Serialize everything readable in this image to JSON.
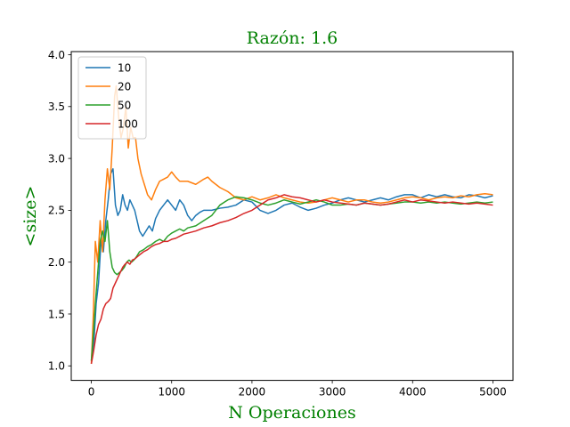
{
  "chart_data": {
    "type": "line",
    "title": "Razón: 1.6",
    "xlabel": "N Operaciones",
    "ylabel": "<size>",
    "label_color": "#008000",
    "xlim": [
      -250,
      5250
    ],
    "ylim": [
      0.86,
      4.03
    ],
    "xticks": [
      0,
      1000,
      2000,
      3000,
      4000,
      5000
    ],
    "xtick_labels": [
      "0",
      "1000",
      "2000",
      "3000",
      "4000",
      "5000"
    ],
    "yticks": [
      1.0,
      1.5,
      2.0,
      2.5,
      3.0,
      3.5,
      4.0
    ],
    "ytick_labels": [
      "1.0",
      "1.5",
      "2.0",
      "2.5",
      "3.0",
      "3.5",
      "4.0"
    ],
    "grid": false,
    "legend_position": "top-left",
    "series": [
      {
        "name": "10",
        "color": "#1f77b4",
        "points": [
          [
            0,
            1.05
          ],
          [
            30,
            1.2
          ],
          [
            60,
            1.6
          ],
          [
            90,
            1.8
          ],
          [
            120,
            2.2
          ],
          [
            150,
            2.1
          ],
          [
            180,
            2.4
          ],
          [
            210,
            2.6
          ],
          [
            240,
            2.85
          ],
          [
            270,
            2.9
          ],
          [
            300,
            2.55
          ],
          [
            330,
            2.45
          ],
          [
            360,
            2.5
          ],
          [
            390,
            2.65
          ],
          [
            420,
            2.55
          ],
          [
            450,
            2.5
          ],
          [
            480,
            2.6
          ],
          [
            510,
            2.55
          ],
          [
            540,
            2.5
          ],
          [
            570,
            2.4
          ],
          [
            600,
            2.3
          ],
          [
            640,
            2.25
          ],
          [
            680,
            2.3
          ],
          [
            720,
            2.35
          ],
          [
            760,
            2.3
          ],
          [
            800,
            2.42
          ],
          [
            850,
            2.5
          ],
          [
            900,
            2.55
          ],
          [
            950,
            2.6
          ],
          [
            1000,
            2.55
          ],
          [
            1050,
            2.5
          ],
          [
            1100,
            2.6
          ],
          [
            1150,
            2.55
          ],
          [
            1200,
            2.45
          ],
          [
            1250,
            2.4
          ],
          [
            1300,
            2.45
          ],
          [
            1350,
            2.48
          ],
          [
            1400,
            2.5
          ],
          [
            1500,
            2.5
          ],
          [
            1600,
            2.52
          ],
          [
            1700,
            2.53
          ],
          [
            1800,
            2.55
          ],
          [
            1900,
            2.6
          ],
          [
            2000,
            2.58
          ],
          [
            2100,
            2.5
          ],
          [
            2200,
            2.47
          ],
          [
            2300,
            2.5
          ],
          [
            2400,
            2.55
          ],
          [
            2500,
            2.57
          ],
          [
            2600,
            2.53
          ],
          [
            2700,
            2.5
          ],
          [
            2800,
            2.52
          ],
          [
            2900,
            2.55
          ],
          [
            3000,
            2.57
          ],
          [
            3100,
            2.6
          ],
          [
            3200,
            2.62
          ],
          [
            3300,
            2.6
          ],
          [
            3400,
            2.58
          ],
          [
            3500,
            2.6
          ],
          [
            3600,
            2.62
          ],
          [
            3700,
            2.6
          ],
          [
            3800,
            2.63
          ],
          [
            3900,
            2.65
          ],
          [
            4000,
            2.65
          ],
          [
            4100,
            2.62
          ],
          [
            4200,
            2.65
          ],
          [
            4300,
            2.63
          ],
          [
            4400,
            2.65
          ],
          [
            4500,
            2.63
          ],
          [
            4600,
            2.62
          ],
          [
            4700,
            2.65
          ],
          [
            4800,
            2.64
          ],
          [
            4900,
            2.62
          ],
          [
            5000,
            2.64
          ]
        ]
      },
      {
        "name": "20",
        "color": "#ff7f0e",
        "points": [
          [
            0,
            1.02
          ],
          [
            25,
            1.5
          ],
          [
            50,
            2.2
          ],
          [
            80,
            2.0
          ],
          [
            110,
            2.4
          ],
          [
            140,
            2.1
          ],
          [
            170,
            2.6
          ],
          [
            200,
            2.9
          ],
          [
            230,
            2.7
          ],
          [
            260,
            3.1
          ],
          [
            290,
            3.6
          ],
          [
            310,
            3.7
          ],
          [
            340,
            3.4
          ],
          [
            370,
            3.2
          ],
          [
            400,
            3.3
          ],
          [
            430,
            3.5
          ],
          [
            460,
            3.1
          ],
          [
            490,
            3.3
          ],
          [
            520,
            3.2
          ],
          [
            550,
            3.2
          ],
          [
            580,
            3.0
          ],
          [
            620,
            2.85
          ],
          [
            660,
            2.75
          ],
          [
            700,
            2.65
          ],
          [
            750,
            2.6
          ],
          [
            800,
            2.7
          ],
          [
            850,
            2.78
          ],
          [
            900,
            2.8
          ],
          [
            950,
            2.82
          ],
          [
            1000,
            2.87
          ],
          [
            1050,
            2.82
          ],
          [
            1100,
            2.78
          ],
          [
            1200,
            2.78
          ],
          [
            1300,
            2.75
          ],
          [
            1400,
            2.8
          ],
          [
            1450,
            2.82
          ],
          [
            1500,
            2.78
          ],
          [
            1600,
            2.72
          ],
          [
            1700,
            2.68
          ],
          [
            1800,
            2.62
          ],
          [
            1900,
            2.6
          ],
          [
            2000,
            2.63
          ],
          [
            2100,
            2.6
          ],
          [
            2200,
            2.62
          ],
          [
            2300,
            2.65
          ],
          [
            2400,
            2.62
          ],
          [
            2500,
            2.6
          ],
          [
            2600,
            2.58
          ],
          [
            2700,
            2.57
          ],
          [
            2800,
            2.58
          ],
          [
            2900,
            2.6
          ],
          [
            3000,
            2.62
          ],
          [
            3100,
            2.6
          ],
          [
            3200,
            2.58
          ],
          [
            3300,
            2.6
          ],
          [
            3400,
            2.6
          ],
          [
            3500,
            2.58
          ],
          [
            3600,
            2.57
          ],
          [
            3700,
            2.58
          ],
          [
            3800,
            2.6
          ],
          [
            3900,
            2.62
          ],
          [
            4000,
            2.63
          ],
          [
            4100,
            2.62
          ],
          [
            4200,
            2.6
          ],
          [
            4300,
            2.62
          ],
          [
            4400,
            2.63
          ],
          [
            4500,
            2.62
          ],
          [
            4600,
            2.64
          ],
          [
            4700,
            2.63
          ],
          [
            4800,
            2.65
          ],
          [
            4900,
            2.66
          ],
          [
            5000,
            2.65
          ]
        ]
      },
      {
        "name": "50",
        "color": "#2ca02c",
        "points": [
          [
            0,
            1.05
          ],
          [
            25,
            1.3
          ],
          [
            50,
            1.6
          ],
          [
            80,
            1.9
          ],
          [
            110,
            2.2
          ],
          [
            140,
            2.3
          ],
          [
            170,
            2.2
          ],
          [
            200,
            2.4
          ],
          [
            230,
            2.1
          ],
          [
            260,
            1.95
          ],
          [
            290,
            1.9
          ],
          [
            320,
            1.88
          ],
          [
            350,
            1.9
          ],
          [
            380,
            1.92
          ],
          [
            410,
            1.95
          ],
          [
            440,
            2.0
          ],
          [
            470,
            2.02
          ],
          [
            500,
            2.0
          ],
          [
            530,
            2.02
          ],
          [
            560,
            2.05
          ],
          [
            600,
            2.1
          ],
          [
            650,
            2.12
          ],
          [
            700,
            2.15
          ],
          [
            750,
            2.17
          ],
          [
            800,
            2.2
          ],
          [
            850,
            2.22
          ],
          [
            900,
            2.2
          ],
          [
            950,
            2.25
          ],
          [
            1000,
            2.28
          ],
          [
            1050,
            2.3
          ],
          [
            1100,
            2.32
          ],
          [
            1150,
            2.3
          ],
          [
            1200,
            2.33
          ],
          [
            1300,
            2.35
          ],
          [
            1400,
            2.4
          ],
          [
            1500,
            2.45
          ],
          [
            1600,
            2.55
          ],
          [
            1700,
            2.6
          ],
          [
            1800,
            2.63
          ],
          [
            1900,
            2.62
          ],
          [
            2000,
            2.6
          ],
          [
            2100,
            2.57
          ],
          [
            2200,
            2.55
          ],
          [
            2300,
            2.57
          ],
          [
            2400,
            2.6
          ],
          [
            2500,
            2.58
          ],
          [
            2600,
            2.56
          ],
          [
            2700,
            2.58
          ],
          [
            2800,
            2.6
          ],
          [
            2900,
            2.58
          ],
          [
            3000,
            2.55
          ],
          [
            3100,
            2.55
          ],
          [
            3200,
            2.56
          ],
          [
            3300,
            2.55
          ],
          [
            3400,
            2.57
          ],
          [
            3500,
            2.56
          ],
          [
            3600,
            2.55
          ],
          [
            3700,
            2.56
          ],
          [
            3800,
            2.57
          ],
          [
            3900,
            2.58
          ],
          [
            4000,
            2.58
          ],
          [
            4100,
            2.57
          ],
          [
            4200,
            2.58
          ],
          [
            4300,
            2.57
          ],
          [
            4400,
            2.58
          ],
          [
            4500,
            2.57
          ],
          [
            4600,
            2.56
          ],
          [
            4700,
            2.57
          ],
          [
            4800,
            2.58
          ],
          [
            4900,
            2.57
          ],
          [
            5000,
            2.58
          ]
        ]
      },
      {
        "name": "100",
        "color": "#d62728",
        "points": [
          [
            0,
            1.02
          ],
          [
            30,
            1.15
          ],
          [
            60,
            1.3
          ],
          [
            90,
            1.4
          ],
          [
            120,
            1.45
          ],
          [
            150,
            1.55
          ],
          [
            180,
            1.6
          ],
          [
            210,
            1.62
          ],
          [
            240,
            1.65
          ],
          [
            270,
            1.75
          ],
          [
            300,
            1.8
          ],
          [
            330,
            1.85
          ],
          [
            360,
            1.9
          ],
          [
            390,
            1.95
          ],
          [
            420,
            1.98
          ],
          [
            450,
            2.0
          ],
          [
            480,
            1.98
          ],
          [
            510,
            2.02
          ],
          [
            540,
            2.03
          ],
          [
            570,
            2.05
          ],
          [
            600,
            2.07
          ],
          [
            650,
            2.1
          ],
          [
            700,
            2.12
          ],
          [
            750,
            2.15
          ],
          [
            800,
            2.17
          ],
          [
            850,
            2.18
          ],
          [
            900,
            2.2
          ],
          [
            950,
            2.2
          ],
          [
            1000,
            2.22
          ],
          [
            1050,
            2.23
          ],
          [
            1100,
            2.25
          ],
          [
            1150,
            2.27
          ],
          [
            1200,
            2.28
          ],
          [
            1300,
            2.3
          ],
          [
            1400,
            2.33
          ],
          [
            1500,
            2.35
          ],
          [
            1600,
            2.38
          ],
          [
            1700,
            2.4
          ],
          [
            1800,
            2.43
          ],
          [
            1900,
            2.47
          ],
          [
            2000,
            2.5
          ],
          [
            2100,
            2.55
          ],
          [
            2200,
            2.6
          ],
          [
            2300,
            2.62
          ],
          [
            2400,
            2.65
          ],
          [
            2500,
            2.63
          ],
          [
            2600,
            2.62
          ],
          [
            2700,
            2.6
          ],
          [
            2800,
            2.58
          ],
          [
            2900,
            2.6
          ],
          [
            3000,
            2.58
          ],
          [
            3100,
            2.57
          ],
          [
            3200,
            2.56
          ],
          [
            3300,
            2.55
          ],
          [
            3400,
            2.57
          ],
          [
            3500,
            2.56
          ],
          [
            3600,
            2.55
          ],
          [
            3700,
            2.56
          ],
          [
            3800,
            2.58
          ],
          [
            3900,
            2.6
          ],
          [
            4000,
            2.58
          ],
          [
            4100,
            2.6
          ],
          [
            4200,
            2.59
          ],
          [
            4300,
            2.58
          ],
          [
            4400,
            2.57
          ],
          [
            4500,
            2.58
          ],
          [
            4600,
            2.57
          ],
          [
            4700,
            2.56
          ],
          [
            4800,
            2.57
          ],
          [
            4900,
            2.56
          ],
          [
            5000,
            2.55
          ]
        ]
      }
    ]
  }
}
